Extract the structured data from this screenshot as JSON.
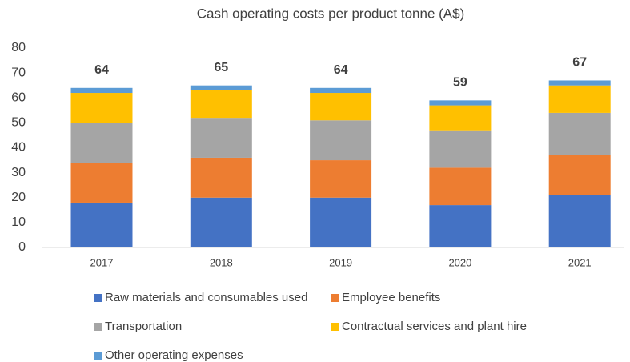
{
  "chart_data": {
    "type": "stacked_bar",
    "title": "Cash operating costs per product tonne (A$)",
    "categories": [
      "2017",
      "2018",
      "2019",
      "2020",
      "2021"
    ],
    "series": [
      {
        "name": "Raw materials and consumables used",
        "color": "#4472c4",
        "values": [
          18,
          20,
          20,
          17,
          21
        ]
      },
      {
        "name": "Employee benefits",
        "color": "#ed7d31",
        "values": [
          16,
          16,
          15,
          15,
          16
        ]
      },
      {
        "name": "Transportation",
        "color": "#a5a5a5",
        "values": [
          16,
          16,
          16,
          15,
          17
        ]
      },
      {
        "name": "Contractual services and plant hire",
        "color": "#ffc000",
        "values": [
          12,
          11,
          11,
          10,
          11
        ]
      },
      {
        "name": "Other operating expenses",
        "color": "#5b9bd5",
        "values": [
          2,
          2,
          2,
          2,
          2
        ]
      }
    ],
    "totals": [
      64,
      65,
      64,
      59,
      67
    ],
    "ylim": [
      0,
      80
    ],
    "yticks": [
      0,
      10,
      20,
      30,
      40,
      50,
      60,
      70,
      80
    ],
    "grid": false,
    "legend": "bottom"
  }
}
